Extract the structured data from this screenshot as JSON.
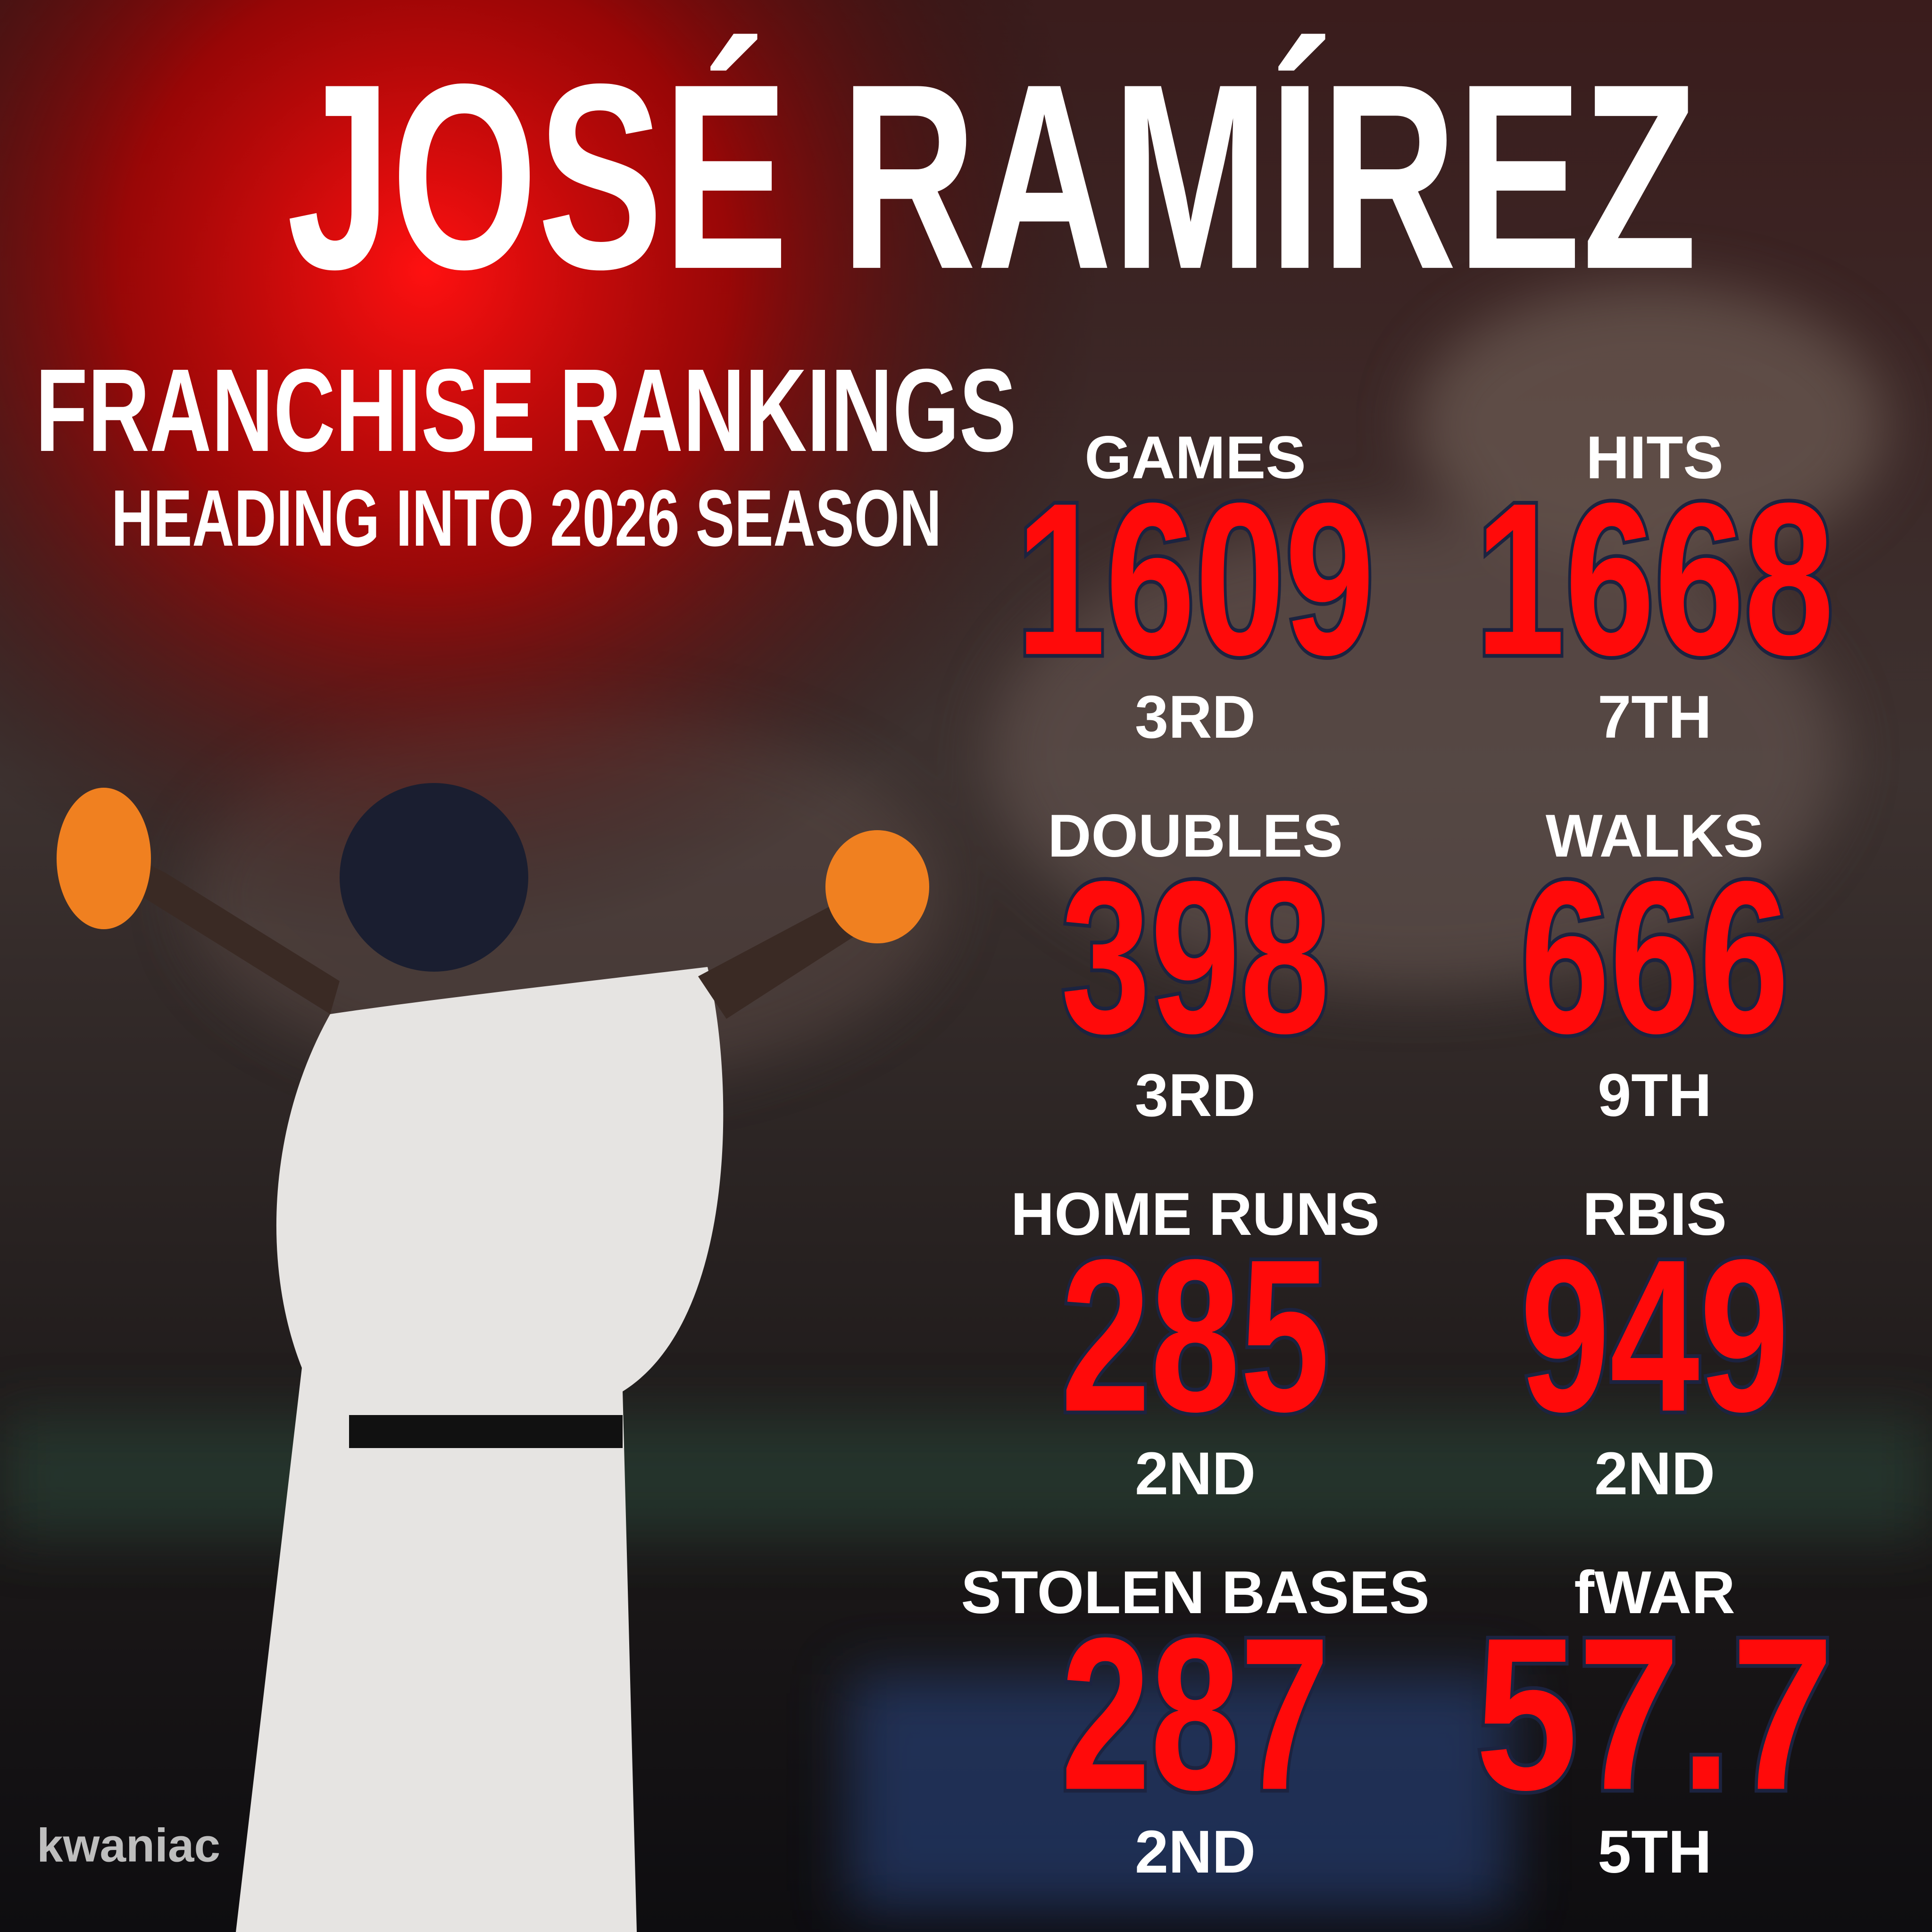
{
  "header": {
    "title": "JOSÉ RAMÍREZ",
    "subtitle": "FRANCHISE RANKINGS",
    "tagline": "HEADING INTO 2026 SEASON"
  },
  "stats": [
    {
      "label": "GAMES",
      "value": 1609,
      "rank": "3RD"
    },
    {
      "label": "HITS",
      "value": 1668,
      "rank": "7TH"
    },
    {
      "label": "DOUBLES",
      "value": 398,
      "rank": "3RD"
    },
    {
      "label": "WALKS",
      "value": 666,
      "rank": "9TH"
    },
    {
      "label": "HOME RUNS",
      "value": 285,
      "rank": "2ND"
    },
    {
      "label": "RBIS",
      "value": 949,
      "rank": "2ND"
    },
    {
      "label": "STOLEN BASES",
      "value": 287,
      "rank": "2ND"
    },
    {
      "label": "fWAR",
      "value": 57.7,
      "rank": "5TH"
    }
  ],
  "watermark": "kwaniac"
}
